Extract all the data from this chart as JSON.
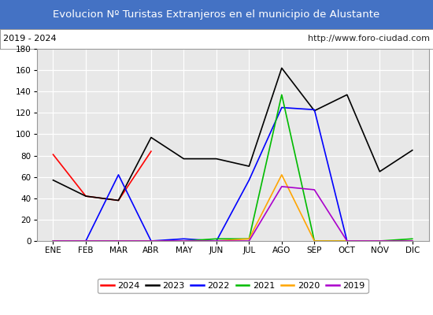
{
  "title": "Evolucion Nº Turistas Extranjeros en el municipio de Alustante",
  "subtitle_left": "2019 - 2024",
  "subtitle_right": "http://www.foro-ciudad.com",
  "months": [
    "ENE",
    "FEB",
    "MAR",
    "ABR",
    "MAY",
    "JUN",
    "JUL",
    "AGO",
    "SEP",
    "OCT",
    "NOV",
    "DIC"
  ],
  "series": {
    "2024": {
      "values": [
        81,
        42,
        38,
        84,
        null,
        null,
        null,
        null,
        null,
        null,
        null,
        null
      ],
      "color": "#ff0000"
    },
    "2023": {
      "values": [
        57,
        42,
        38,
        97,
        77,
        77,
        70,
        162,
        122,
        137,
        65,
        85
      ],
      "color": "#000000"
    },
    "2022": {
      "values": [
        0,
        0,
        62,
        0,
        2,
        0,
        57,
        125,
        123,
        0,
        0,
        0
      ],
      "color": "#0000ff"
    },
    "2021": {
      "values": [
        0,
        0,
        0,
        0,
        0,
        2,
        2,
        137,
        0,
        0,
        0,
        2
      ],
      "color": "#00bb00"
    },
    "2020": {
      "values": [
        0,
        0,
        0,
        0,
        0,
        0,
        2,
        62,
        0,
        0,
        0,
        0
      ],
      "color": "#ffa500"
    },
    "2019": {
      "values": [
        0,
        0,
        0,
        0,
        0,
        0,
        0,
        51,
        48,
        0,
        0,
        0
      ],
      "color": "#aa00cc"
    }
  },
  "ylim": [
    0,
    180
  ],
  "yticks": [
    0,
    20,
    40,
    60,
    80,
    100,
    120,
    140,
    160,
    180
  ],
  "title_bg_color": "#4472c4",
  "title_text_color": "#ffffff",
  "plot_bg_color": "#e8e8e8",
  "grid_color": "#ffffff",
  "legend_order": [
    "2024",
    "2023",
    "2022",
    "2021",
    "2020",
    "2019"
  ]
}
